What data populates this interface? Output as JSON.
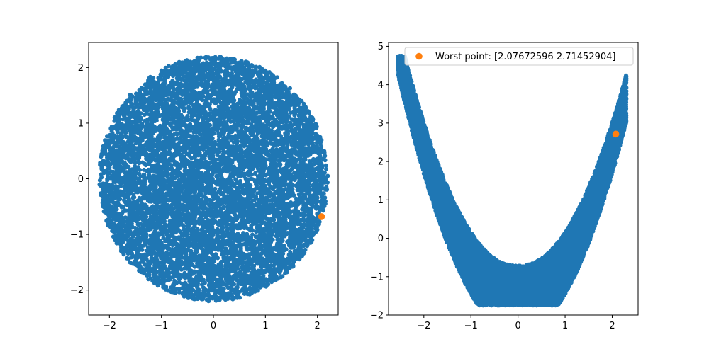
{
  "chart_data": [
    {
      "type": "scatter",
      "description_shape": "disk of radius about 2.2 centered at origin",
      "xlim": [
        -2.4,
        2.4
      ],
      "ylim": [
        -2.45,
        2.45
      ],
      "xticks": [
        -2,
        -1,
        0,
        1,
        2
      ],
      "yticks": [
        -2,
        -1,
        0,
        1,
        2
      ],
      "xtick_labels": [
        "−2",
        "−1",
        "0",
        "1",
        "2"
      ],
      "ytick_labels": [
        "−2",
        "−1",
        "0",
        "1",
        "2"
      ],
      "grid": false,
      "series": [
        {
          "color": "#1f77b4",
          "kind": "uniform-disk",
          "center": [
            0,
            0
          ],
          "radius": 2.2,
          "count": 9000
        },
        {
          "color": "#ff7f0e",
          "points": [
            [
              2.08,
              -0.68
            ]
          ]
        }
      ]
    },
    {
      "type": "scatter",
      "description_shape": "banana / parabola band: y ≈ x² − 1.6 ± 0.9",
      "xlim": [
        -2.75,
        2.55
      ],
      "ylim": [
        -2.0,
        5.1
      ],
      "xticks": [
        -2,
        -1,
        0,
        1,
        2
      ],
      "yticks": [
        -2,
        -1,
        0,
        1,
        2,
        3,
        4,
        5
      ],
      "xtick_labels": [
        "−2",
        "−1",
        "0",
        "1",
        "2"
      ],
      "ytick_labels": [
        "−2",
        "−1",
        "0",
        "1",
        "2",
        "3",
        "4",
        "5"
      ],
      "grid": false,
      "legend": {
        "placement": "top-right",
        "entries": [
          {
            "label": "Worst point: [2.07672596 2.71452904]",
            "color": "#ff7f0e"
          }
        ]
      },
      "series": [
        {
          "color": "#1f77b4",
          "kind": "banana",
          "count": 14000
        },
        {
          "name": "Worst point: [2.07672596 2.71452904]",
          "color": "#ff7f0e",
          "points": [
            [
              2.07672596,
              2.71452904
            ]
          ]
        }
      ]
    }
  ]
}
